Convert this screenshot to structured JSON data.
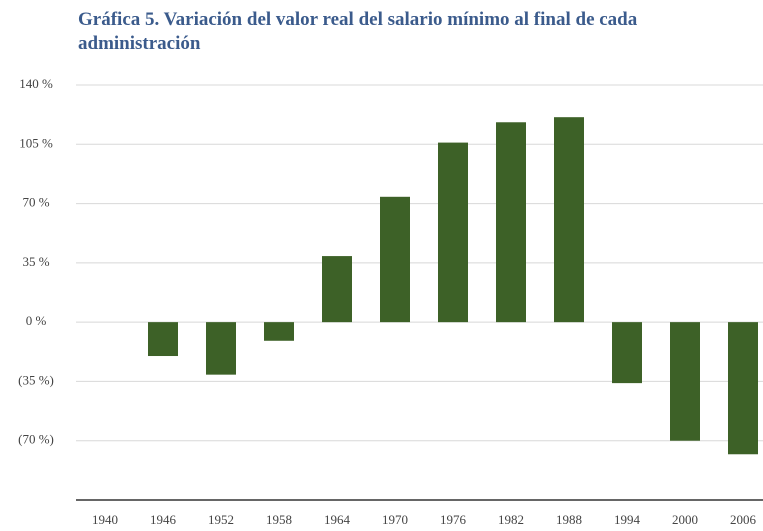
{
  "chart_data": {
    "type": "bar",
    "title": "Gráfica 5. Variación del valor real del salario mínimo al final de cada administración",
    "categories": [
      "1940",
      "1946",
      "1952",
      "1958",
      "1964",
      "1970",
      "1976",
      "1982",
      "1988",
      "1994",
      "2000",
      "2006"
    ],
    "values": [
      null,
      -20,
      -31,
      -11,
      39,
      74,
      106,
      118,
      121,
      -36,
      -70,
      -78
    ],
    "color": "#3d6127",
    "ylim": [
      -105,
      140
    ],
    "yticks": [
      {
        "value": 140,
        "label": "140 %"
      },
      {
        "value": 105,
        "label": "105 %"
      },
      {
        "value": 70,
        "label": "70 %"
      },
      {
        "value": 35,
        "label": "35 %"
      },
      {
        "value": 0,
        "label": "0 %"
      },
      {
        "value": -35,
        "label": "(35 %)"
      },
      {
        "value": -70,
        "label": "(70 %)"
      }
    ],
    "grid": true
  }
}
